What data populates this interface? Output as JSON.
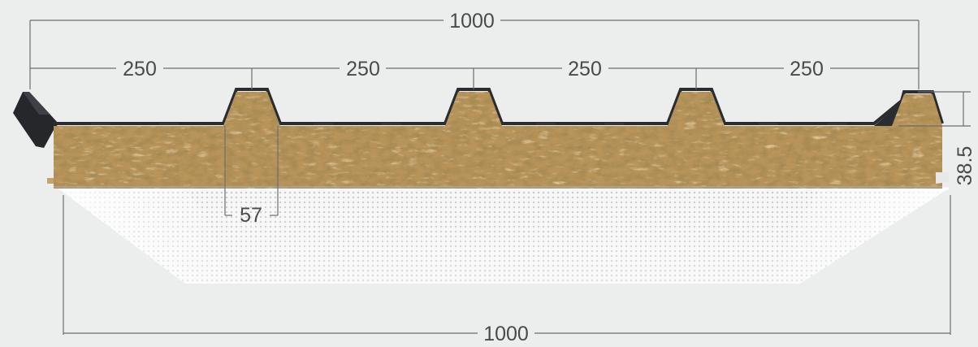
{
  "dimensions": {
    "top_total": "1000",
    "rib_spacing": [
      "250",
      "250",
      "250",
      "250"
    ],
    "rib_width": "57",
    "rib_height": "38.5",
    "bottom_total": "1000"
  },
  "colors": {
    "background": "#eceeee",
    "insulation_core": "#b8945a",
    "insulation_dark": "#8a6a38",
    "insulation_light": "#d8b87a",
    "facing_top": "#2a2c30",
    "facing_bottom": "#f4f4f4",
    "dimension_line": "#6d6d6d",
    "dimension_text": "#4a4a4a"
  }
}
